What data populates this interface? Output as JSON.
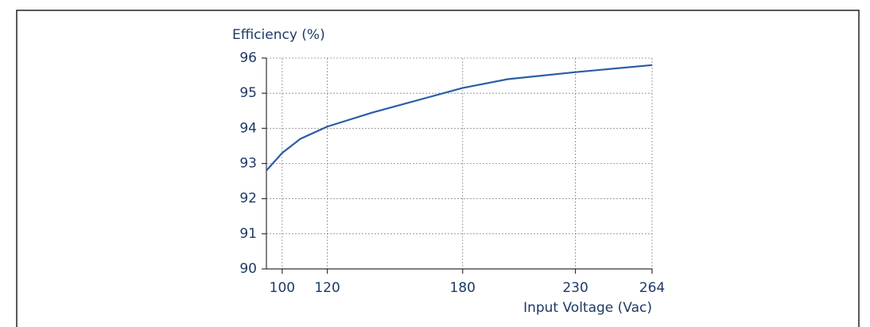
{
  "chart_data": {
    "type": "line",
    "ylabel": "Efficiency (%)",
    "xlabel": "Input Voltage (Vac)",
    "x": [
      93,
      100,
      108,
      120,
      140,
      160,
      180,
      200,
      230,
      264
    ],
    "values": [
      92.8,
      93.3,
      93.7,
      94.05,
      94.45,
      94.8,
      95.15,
      95.4,
      95.6,
      95.8
    ],
    "color": "#2a5ca8",
    "xlim": [
      93,
      264
    ],
    "xticks": [
      100,
      120,
      180,
      230,
      264
    ],
    "ylim": [
      90,
      96
    ],
    "yticks": [
      90,
      91,
      92,
      93,
      94,
      95,
      96
    ],
    "grid": true
  }
}
